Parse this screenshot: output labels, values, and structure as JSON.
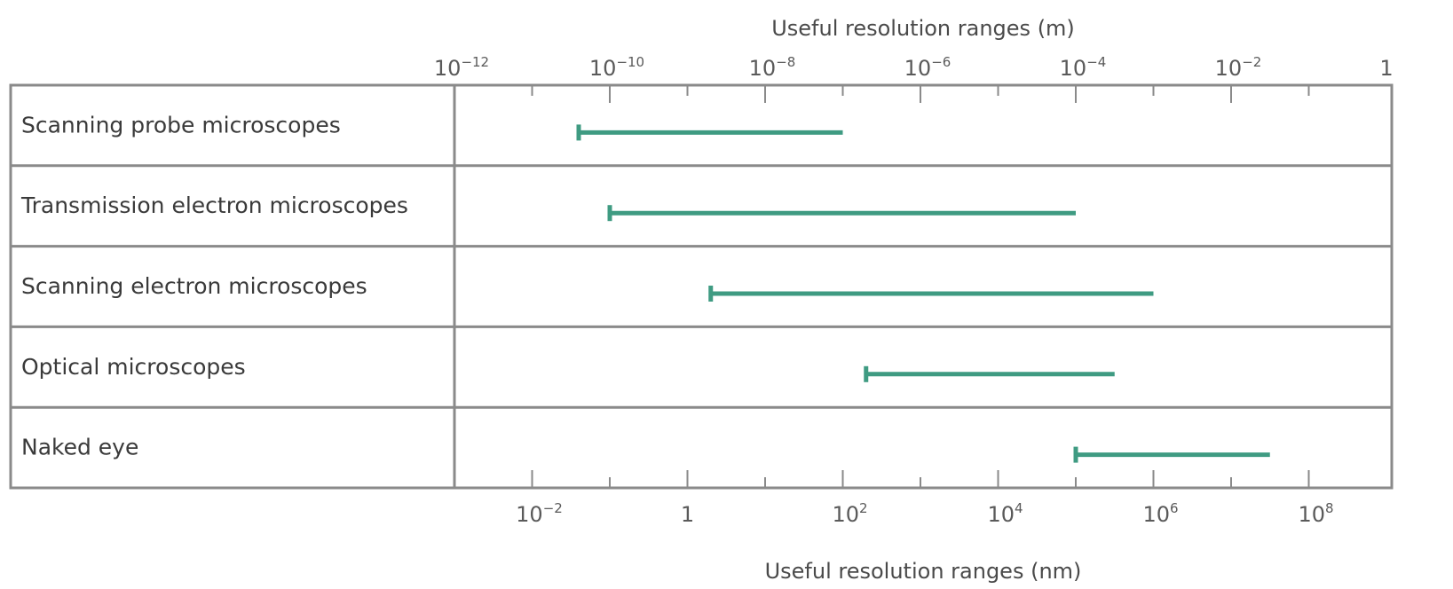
{
  "colors": {
    "range_bar": "#3f9b82",
    "frame": "#8a8a8a",
    "text": "#3a3a3a"
  },
  "chart_data": {
    "type": "bar",
    "orientation": "horizontal-range",
    "x_scale": "log",
    "top_axis": {
      "label": "Useful resolution ranges (m)",
      "unit": "m",
      "range_log10": [
        -12,
        0
      ],
      "tick_labels": [
        {
          "value_log10": -12,
          "base": "10",
          "exp": "−12"
        },
        {
          "value_log10": -10,
          "base": "10",
          "exp": "−10"
        },
        {
          "value_log10": -8,
          "base": "10",
          "exp": "−8"
        },
        {
          "value_log10": -6,
          "base": "10",
          "exp": "−6"
        },
        {
          "value_log10": -4,
          "base": "10",
          "exp": "−4"
        },
        {
          "value_log10": -2,
          "base": "10",
          "exp": "−2"
        },
        {
          "value_log10": 0,
          "base": "1",
          "exp": ""
        }
      ]
    },
    "bottom_axis": {
      "label": "Useful resolution ranges (nm)",
      "unit": "nm",
      "range_log10": [
        -3,
        9
      ],
      "tick_labels": [
        {
          "value_log10": -2,
          "base": "10",
          "exp": "−2"
        },
        {
          "value_log10": 0,
          "base": "1",
          "exp": ""
        },
        {
          "value_log10": 2,
          "base": "10",
          "exp": "2"
        },
        {
          "value_log10": 4,
          "base": "10",
          "exp": "4"
        },
        {
          "value_log10": 6,
          "base": "10",
          "exp": "6"
        },
        {
          "value_log10": 8,
          "base": "10",
          "exp": "8"
        }
      ]
    },
    "categories": [
      "Scanning probe microscopes",
      "Transmission electron microscopes",
      "Scanning electron microscopes",
      "Optical microscopes",
      "Naked eye"
    ],
    "series": [
      {
        "ranges_m_log10": [
          [
            -10.4,
            -7.0
          ],
          [
            -10.0,
            -4.0
          ],
          [
            -8.7,
            -3.0
          ],
          [
            -6.7,
            -3.5
          ],
          [
            -4.0,
            -1.5
          ]
        ]
      }
    ],
    "legend": "none",
    "grid": false
  }
}
